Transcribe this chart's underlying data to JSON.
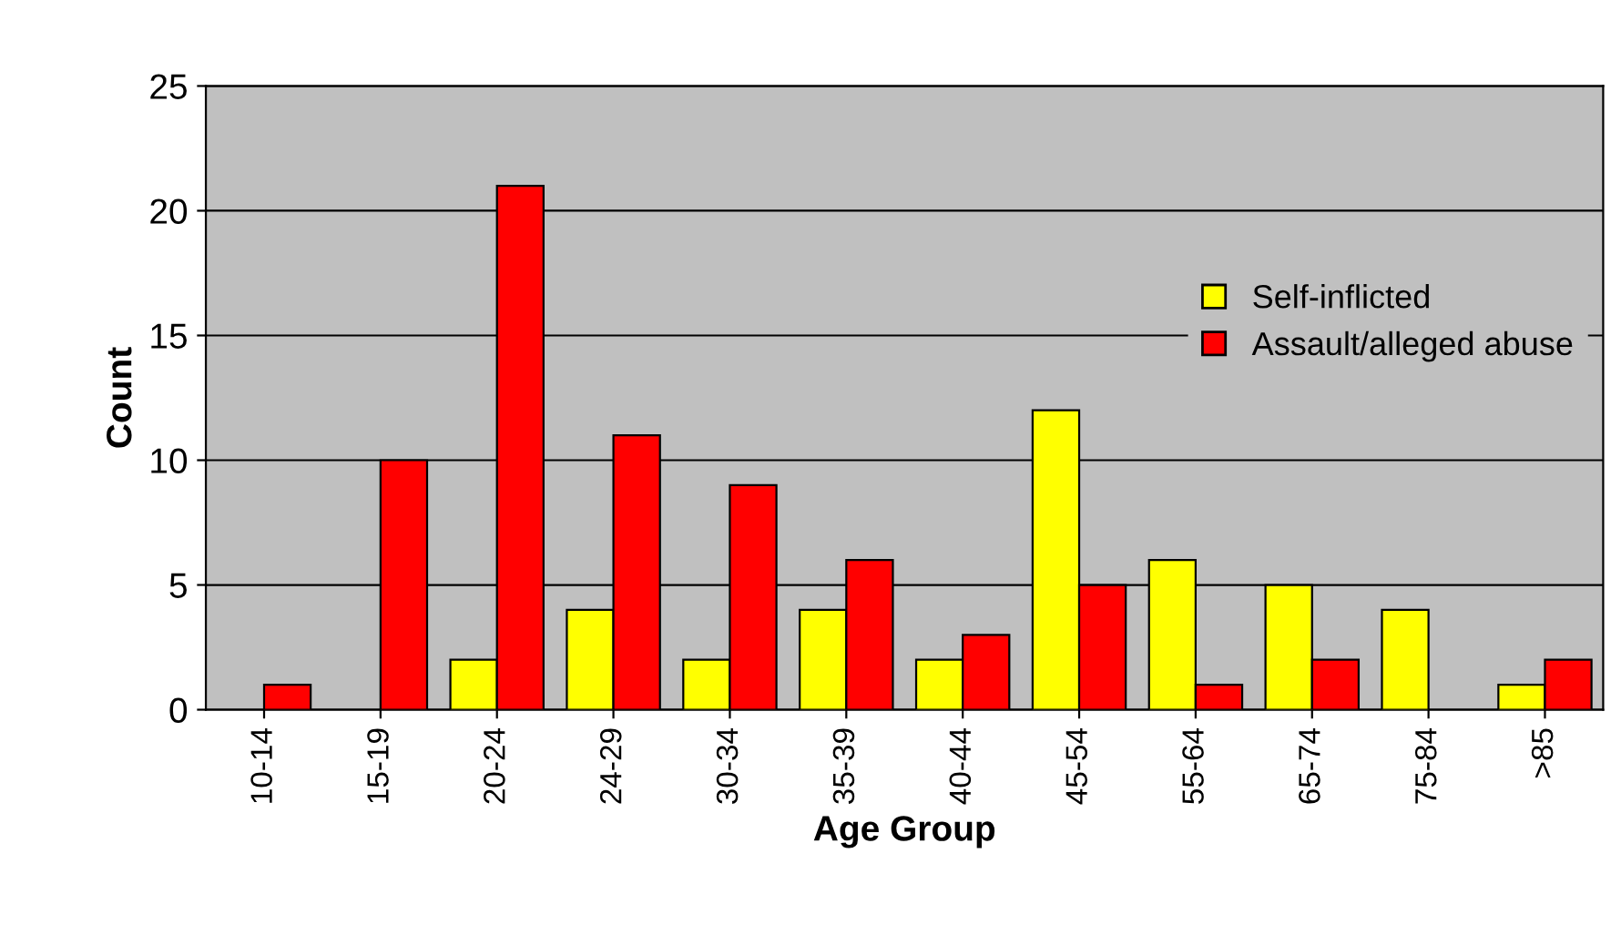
{
  "chart_data": {
    "type": "bar",
    "xlabel": "Age Group",
    "ylabel": "Count",
    "categories": [
      "10-14",
      "15-19",
      "20-24",
      "24-29",
      "30-34",
      "35-39",
      "40-44",
      "45-54",
      "55-64",
      "65-74",
      "75-84",
      ">85"
    ],
    "series": [
      {
        "name": "Self-inflicted",
        "color": "#ffff00",
        "values": [
          null,
          null,
          2,
          4,
          2,
          4,
          2,
          12,
          6,
          5,
          4,
          1
        ]
      },
      {
        "name": "Assault/alleged abuse",
        "color": "#ff0000",
        "values": [
          1,
          10,
          21,
          11,
          9,
          6,
          3,
          5,
          1,
          2,
          null,
          2
        ]
      }
    ],
    "ylim": [
      0,
      25
    ],
    "yticks": [
      0,
      5,
      10,
      15,
      20,
      25
    ],
    "grid": "y",
    "legend": "right"
  }
}
